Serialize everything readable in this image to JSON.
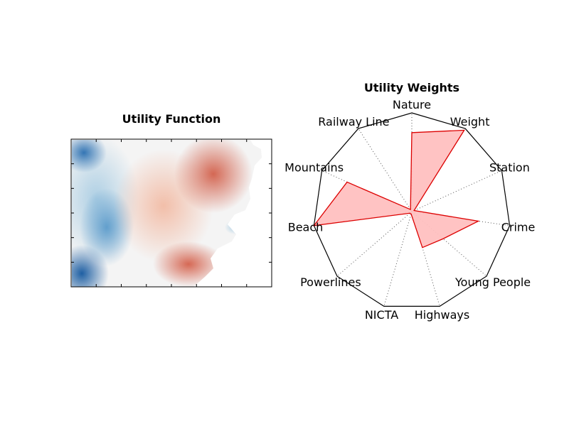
{
  "chart_data": [
    {
      "type": "heatmap",
      "title": "Utility Function",
      "colormap": "RdBu_r",
      "colors": {
        "low": "#2166ac",
        "mid": "#f7f7f7",
        "high": "#d6604d",
        "frame": "#000000"
      },
      "grid": false,
      "ticks": "unlabeled"
    },
    {
      "type": "radar",
      "title": "Utility Weights",
      "categories": [
        "Nature",
        "Weight",
        "Station",
        "Crime",
        "Young People",
        "Highways",
        "NICTA",
        "Powerlines",
        "Beach",
        "Mountains",
        "Railway Line"
      ],
      "values": [
        0.8,
        0.98,
        0.02,
        0.68,
        0.42,
        0.38,
        0.0,
        0.0,
        1.0,
        0.72,
        0.02
      ],
      "rlim": [
        0,
        1
      ],
      "colors": {
        "fill": "#ffc0c0",
        "line": "#dd0000",
        "frame": "#000000",
        "spokes": "#555555"
      },
      "grid": true
    }
  ]
}
